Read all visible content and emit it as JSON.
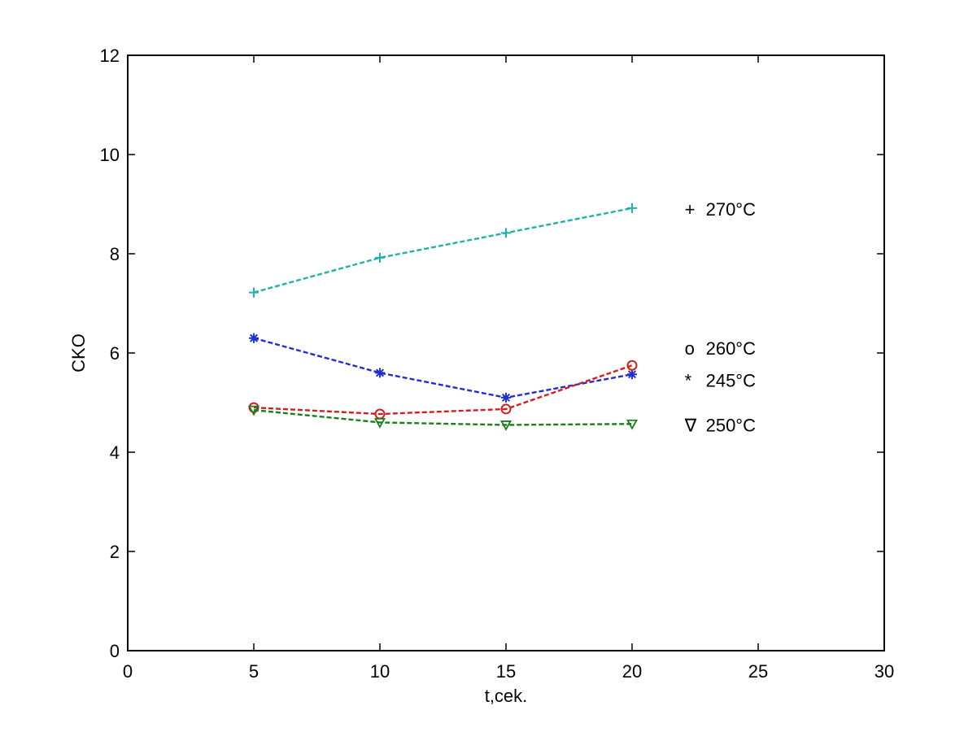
{
  "chart_data": {
    "type": "line",
    "title": "",
    "xlabel": "t,cek.",
    "ylabel": "CKO",
    "xlim": [
      0,
      30
    ],
    "ylim": [
      0,
      12
    ],
    "xticks": [
      0,
      5,
      10,
      15,
      20,
      25,
      30
    ],
    "yticks": [
      0,
      2,
      4,
      6,
      8,
      10,
      12
    ],
    "grid": false,
    "x": [
      5,
      10,
      15,
      20
    ],
    "series": [
      {
        "key": "270",
        "marker": "+",
        "color": "#20b2aa",
        "values": [
          7.22,
          7.92,
          8.42,
          8.92
        ]
      },
      {
        "key": "245",
        "marker": "*",
        "color": "#1f2ed6",
        "values": [
          6.3,
          5.6,
          5.1,
          5.57
        ]
      },
      {
        "key": "260",
        "marker": "o",
        "color": "#d21e1e",
        "values": [
          4.9,
          4.77,
          4.87,
          5.75
        ]
      },
      {
        "key": "250",
        "marker": "v",
        "color": "#1a7f1a",
        "values": [
          4.85,
          4.6,
          4.55,
          4.57
        ]
      }
    ],
    "annotations": [
      {
        "series": "270",
        "marker_text": "+",
        "text": "270°C",
        "x": 22.6,
        "y": 8.9
      },
      {
        "series": "260",
        "marker_text": "o",
        "text": "260°C",
        "x": 22.6,
        "y": 6.1
      },
      {
        "series": "245",
        "marker_text": "*",
        "text": "245°C",
        "x": 22.6,
        "y": 5.45
      },
      {
        "series": "250",
        "marker_text": "∇",
        "text": "250°C",
        "x": 22.6,
        "y": 4.55
      }
    ]
  }
}
